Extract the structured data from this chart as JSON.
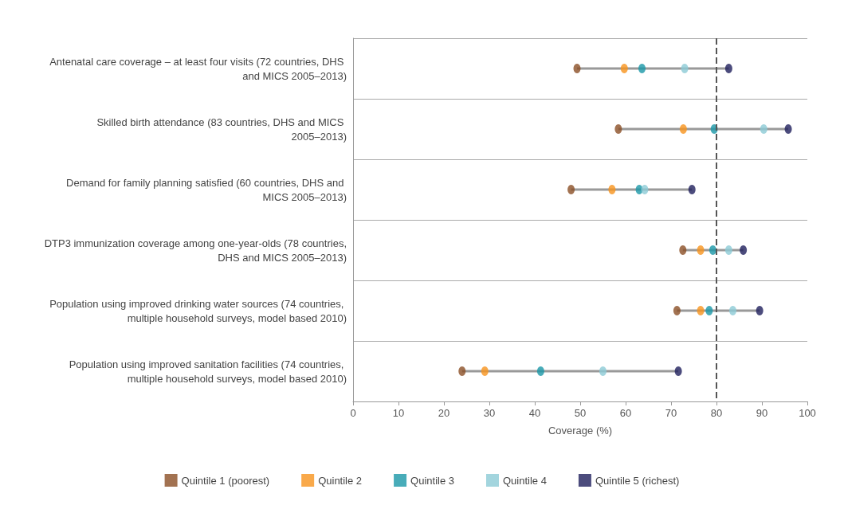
{
  "chart_data": {
    "type": "scatter",
    "orientation": "horizontal",
    "xlabel": "Coverage (%)",
    "categories": [
      "Antenatal care coverage – at least four visits (72 countries, DHS and MICS 2005–2013)",
      "Skilled birth attendance (83 countries, DHS and MICS 2005–2013)",
      "Demand for family planning satisfied (60 countries, DHS and MICS 2005–2013)",
      "DTP3 immunization coverage among one-year-olds (78 countries, DHS and MICS 2005–2013)",
      "Population using improved drinking water sources (74 countries, multiple household surveys, model based 2010)",
      "Population using improved sanitation facilities (74 countries, multiple household surveys, model based 2010)"
    ],
    "series": [
      {
        "name": "Quintile 1 (poorest)",
        "color": "#8b4f26",
        "values": [
          49.3,
          58.4,
          48,
          72.6,
          71.3,
          24
        ]
      },
      {
        "name": "Quintile 2",
        "color": "#f7941d",
        "values": [
          59.7,
          72.7,
          57,
          76.5,
          76.5,
          29
        ]
      },
      {
        "name": "Quintile 3",
        "color": "#1a97a8",
        "values": [
          63.6,
          79.5,
          63,
          79.2,
          78.4,
          41.3
        ]
      },
      {
        "name": "Quintile 4",
        "color": "#8ccbd6",
        "values": [
          73,
          90.4,
          64.2,
          82.7,
          83.6,
          55
        ]
      },
      {
        "name": "Quintile 5 (richest)",
        "color": "#1f1f5c",
        "values": [
          82.7,
          95.8,
          74.6,
          85.9,
          89.5,
          71.6
        ]
      }
    ],
    "xlim": [
      0,
      100
    ],
    "xticks": [
      0,
      10,
      20,
      30,
      40,
      50,
      60,
      70,
      80,
      90,
      100
    ],
    "ref_lines": [
      {
        "axis": "x",
        "value": 80,
        "line_style": "dashed",
        "color": "#555555"
      }
    ],
    "grid": "y",
    "legend": "bottom",
    "marker": "circle"
  }
}
